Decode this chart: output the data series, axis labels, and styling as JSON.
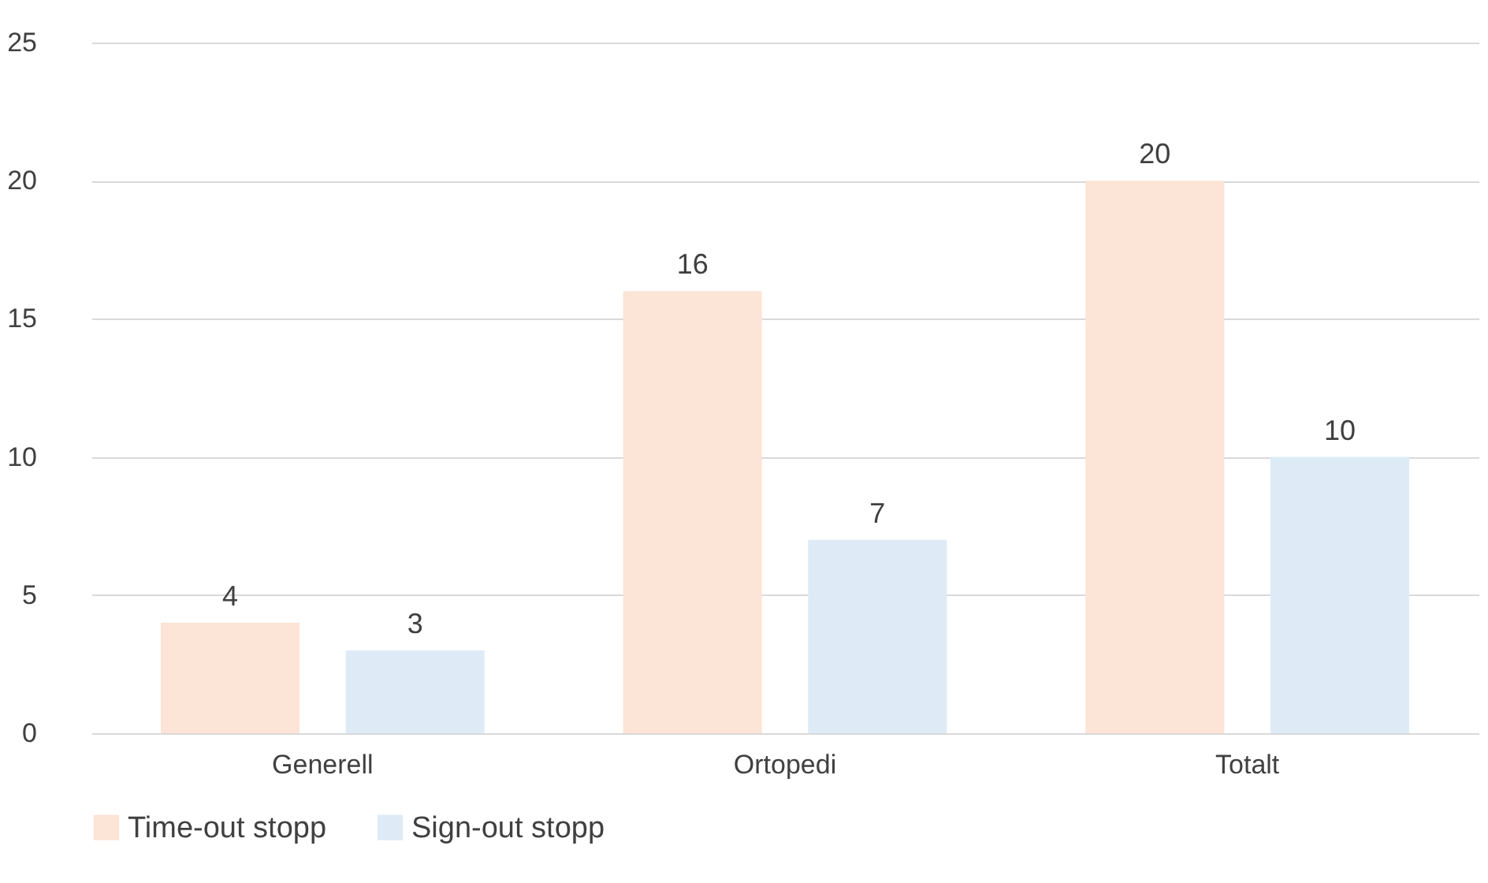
{
  "chart_data": {
    "type": "bar",
    "categories": [
      "Generell",
      "Ortopedi",
      "Totalt"
    ],
    "series": [
      {
        "name": "Time-out stopp",
        "color": "#fce4d6",
        "values": [
          4,
          16,
          20
        ]
      },
      {
        "name": "Sign-out stopp",
        "color": "#deebf7",
        "values": [
          3,
          7,
          10
        ]
      }
    ],
    "ylim": [
      0,
      25
    ],
    "yticks": [
      0,
      5,
      10,
      15,
      20,
      25
    ],
    "grid": "y",
    "legend": "bottom",
    "data_labels": true
  }
}
